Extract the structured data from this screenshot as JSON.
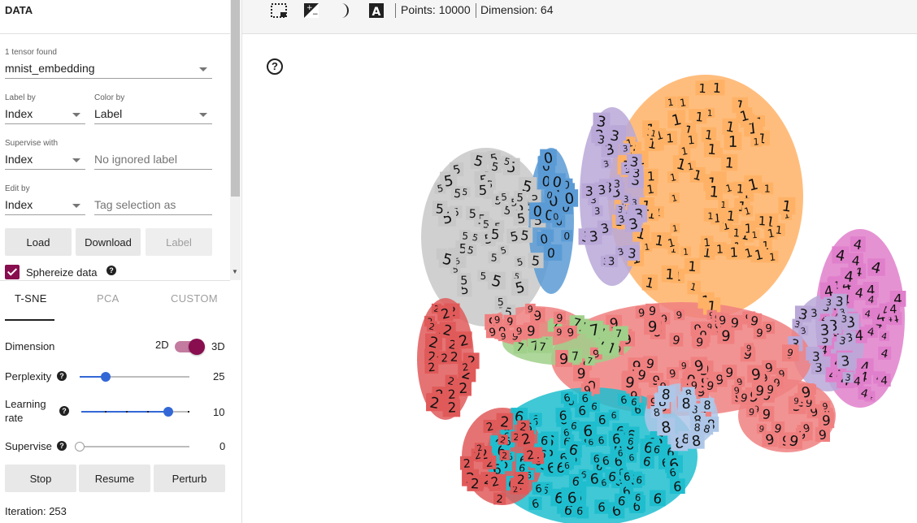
{
  "data_panel": {
    "title": "DATA",
    "tensor_count": "1 tensor found",
    "tensor_name": "mnist_embedding",
    "label_by": {
      "label": "Label by",
      "value": "Index"
    },
    "color_by": {
      "label": "Color by",
      "value": "Label"
    },
    "supervise_with": {
      "label": "Supervise with",
      "value": "Index"
    },
    "ignored_label_placeholder": "No ignored label",
    "edit_by": {
      "label": "Edit by",
      "value": "Index"
    },
    "tag_placeholder": "Tag selection as",
    "buttons": {
      "load": "Load",
      "download": "Download",
      "label": "Label"
    },
    "sphereize": {
      "label": "Sphereize data",
      "checked": true
    }
  },
  "tabs": [
    {
      "label": "T-SNE",
      "active": true
    },
    {
      "label": "PCA",
      "active": false
    },
    {
      "label": "CUSTOM",
      "active": false
    }
  ],
  "tsne": {
    "dimension": {
      "label": "Dimension",
      "left": "2D",
      "right": "3D",
      "selected": "3D"
    },
    "perplexity": {
      "label": "Perplexity",
      "value": "25",
      "fraction": 0.22
    },
    "learning_rate": {
      "label_line1": "Learning",
      "label_line2": "rate",
      "value": "10",
      "fraction": 0.8
    },
    "supervise": {
      "label": "Supervise",
      "value": "0",
      "fraction": 0.0
    },
    "buttons": {
      "stop": "Stop",
      "resume": "Resume",
      "perturb": "Perturb"
    },
    "iteration": "Iteration: 253"
  },
  "toolbar": {
    "icons": [
      "select-rectangle-icon",
      "night-mode-icon-contrast",
      "moon-icon",
      "label-text-icon"
    ],
    "points": "Points: 10000",
    "dimension": "Dimension: 64"
  },
  "projector": {
    "help_icon_glyph": "?",
    "clusters": [
      {
        "digit": "0",
        "color": "#5b9bd5"
      },
      {
        "digit": "1",
        "color": "#ffb266"
      },
      {
        "digit": "2",
        "color": "#e05a5a"
      },
      {
        "digit": "3",
        "color": "#b9a8d8"
      },
      {
        "digit": "4",
        "color": "#e07fcb"
      },
      {
        "digit": "5",
        "color": "#c8c8c8"
      },
      {
        "digit": "6",
        "color": "#1fbecf"
      },
      {
        "digit": "7",
        "color": "#a0d08a"
      },
      {
        "digit": "8",
        "color": "#aec7e8"
      },
      {
        "digit": "9",
        "color": "#f08080"
      }
    ]
  }
}
